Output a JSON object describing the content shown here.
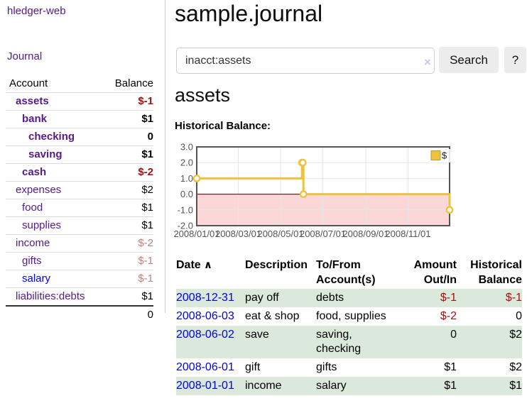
{
  "app": {
    "brand": "hledger-web"
  },
  "sidebar": {
    "journal_link": "Journal",
    "header": {
      "account": "Account",
      "balance": "Balance"
    },
    "accounts": [
      {
        "name": "assets",
        "balance": "$-1",
        "depth": 1,
        "bold": true,
        "neg": "strong"
      },
      {
        "name": "bank",
        "balance": "$1",
        "depth": 2,
        "bold": true
      },
      {
        "name": "checking",
        "balance": "0",
        "depth": 3,
        "bold": true
      },
      {
        "name": "saving",
        "balance": "$1",
        "depth": 3,
        "bold": true
      },
      {
        "name": "cash",
        "balance": "$-2",
        "depth": 2,
        "bold": true,
        "neg": "strong"
      },
      {
        "name": "expenses",
        "balance": "$2",
        "depth": 1
      },
      {
        "name": "food",
        "balance": "$1",
        "depth": 2
      },
      {
        "name": "supplies",
        "balance": "$1",
        "depth": 2
      },
      {
        "name": "income",
        "balance": "$-2",
        "depth": 1,
        "neg": "faded"
      },
      {
        "name": "gifts",
        "balance": "$-1",
        "depth": 2,
        "neg": "faded"
      },
      {
        "name": "salary",
        "balance": "$-1",
        "depth": 2,
        "neg": "faded",
        "blue": true
      },
      {
        "name": "liabilities:debts",
        "balance": "$1",
        "depth": 1
      }
    ],
    "total": "0"
  },
  "header": {
    "title": "sample.journal"
  },
  "search": {
    "value": "inacct:assets",
    "clear_icon": "×",
    "button_label": "Search",
    "help_label": "?"
  },
  "account_page": {
    "title": "assets",
    "chart_label": "Historical Balance:"
  },
  "chart_data": {
    "type": "line",
    "step": true,
    "series": [
      {
        "name": "$",
        "points": [
          [
            "2008-01-01",
            1.0
          ],
          [
            "2008-06-01",
            2.0
          ],
          [
            "2008-06-02",
            2.0
          ],
          [
            "2008-06-03",
            0.0
          ],
          [
            "2008-12-31",
            -1.0
          ]
        ]
      }
    ],
    "x_range": [
      "2008-01-01",
      "2008-12-31"
    ],
    "ylim": [
      -2.0,
      3.0
    ],
    "yticks": [
      "3.0",
      "2.0",
      "1.0",
      "0.0",
      "-1.0",
      "-2.0"
    ],
    "xticks": [
      "2008/01/01",
      "2008/03/01",
      "2008/05/01",
      "2008/07/01",
      "2008/09/01",
      "2008/11/01"
    ],
    "legend": {
      "label": "$",
      "position": "top-right"
    },
    "colors": {
      "line": "#edc240",
      "negative_fill": "#fbd7d7",
      "zero_line": "#8b1c1c",
      "border": "#545454",
      "grid": "#e6e6e6",
      "tick_text": "#545454"
    }
  },
  "register": {
    "columns": [
      {
        "l1": "Date",
        "l2": "",
        "sort": "asc"
      },
      {
        "l1": "Description",
        "l2": ""
      },
      {
        "l1": "To/From",
        "l2": "Account(s)"
      },
      {
        "l1": "Amount",
        "l2": "Out/In",
        "num": true
      },
      {
        "l1": "Historical",
        "l2": "Balance",
        "num": true
      }
    ],
    "sort_icon": "∧",
    "rows": [
      {
        "date": "2008-12-31",
        "description": "pay off",
        "accounts": "debts",
        "amount": "$-1",
        "balance": "$-1",
        "amount_neg": true,
        "balance_neg": true,
        "shaded": true
      },
      {
        "date": "2008-06-03",
        "description": "eat & shop",
        "accounts": "food, supplies",
        "amount": "$-2",
        "balance": "0",
        "amount_neg": true,
        "shaded": false
      },
      {
        "date": "2008-06-02",
        "description": "save",
        "accounts": "saving, checking",
        "amount": "0",
        "balance": "$2",
        "shaded": true
      },
      {
        "date": "2008-06-01",
        "description": "gift",
        "accounts": "gifts",
        "amount": "$1",
        "balance": "$2",
        "shaded": false
      },
      {
        "date": "2008-01-01",
        "description": "income",
        "accounts": "salary",
        "amount": "$1",
        "balance": "$1",
        "shaded": true
      }
    ]
  }
}
